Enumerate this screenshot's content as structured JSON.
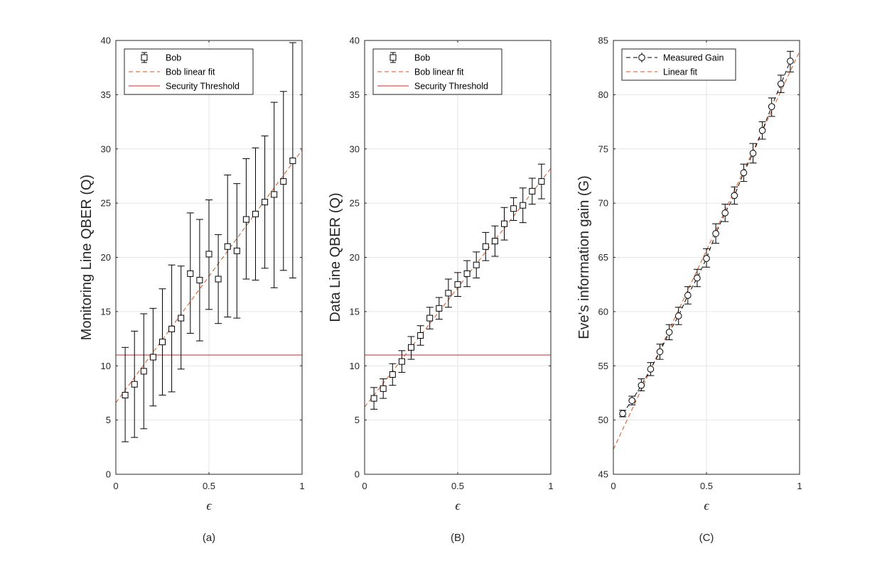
{
  "figure": {
    "colors": {
      "data": "#000000",
      "fit": "#d95319",
      "threshold": "#d62728",
      "grid": "#e6e6e6",
      "axis": "#262626"
    }
  },
  "chart_data": [
    {
      "type": "scatter",
      "caption": "(a)",
      "xlabel": "ϵ",
      "ylabel": "Monitoring Line QBER (Q)",
      "xlim": [
        0,
        1
      ],
      "ylim": [
        0,
        40
      ],
      "xticks": [
        0,
        0.5,
        1
      ],
      "xtick_labels": [
        "0",
        "0.5",
        "1"
      ],
      "yticks": [
        0,
        5,
        10,
        15,
        20,
        25,
        30,
        35,
        40
      ],
      "ytick_labels": [
        "0",
        "5",
        "10",
        "15",
        "20",
        "25",
        "30",
        "35",
        "40"
      ],
      "grid": true,
      "marker": "square",
      "legend": {
        "position": "top-left",
        "entries": [
          "Bob",
          "Bob linear fit",
          "Security Threshold"
        ]
      },
      "series": [
        {
          "name": "Bob",
          "x": [
            0.05,
            0.1,
            0.15,
            0.2,
            0.25,
            0.3,
            0.35,
            0.4,
            0.45,
            0.5,
            0.55,
            0.6,
            0.65,
            0.7,
            0.75,
            0.8,
            0.85,
            0.9,
            0.95
          ],
          "y": [
            7.3,
            8.3,
            9.5,
            10.8,
            12.2,
            13.4,
            14.4,
            18.5,
            17.9,
            20.3,
            18.0,
            21.0,
            20.6,
            23.5,
            24.0,
            25.1,
            25.8,
            27.0,
            28.9
          ],
          "lower": [
            3.0,
            3.4,
            4.2,
            6.3,
            7.3,
            7.6,
            9.7,
            13.0,
            12.3,
            15.2,
            13.9,
            14.5,
            14.4,
            18.0,
            17.9,
            19.0,
            17.2,
            18.8,
            18.1
          ],
          "upper": [
            11.7,
            13.2,
            14.8,
            15.3,
            17.1,
            19.3,
            19.2,
            24.1,
            23.5,
            25.3,
            22.1,
            27.6,
            26.8,
            29.1,
            30.1,
            31.2,
            34.3,
            35.3,
            39.8
          ]
        }
      ],
      "fit": {
        "name": "Bob linear fit",
        "x": [
          0,
          1
        ],
        "y": [
          6.6,
          29.9
        ]
      },
      "threshold": {
        "name": "Security Threshold",
        "y": 11
      }
    },
    {
      "type": "scatter",
      "caption": "(B)",
      "xlabel": "ϵ",
      "ylabel": "Data Line QBER (Q)",
      "xlim": [
        0,
        1
      ],
      "ylim": [
        0,
        40
      ],
      "xticks": [
        0,
        0.5,
        1
      ],
      "xtick_labels": [
        "0",
        "0.5",
        "1"
      ],
      "yticks": [
        0,
        5,
        10,
        15,
        20,
        25,
        30,
        35,
        40
      ],
      "ytick_labels": [
        "0",
        "5",
        "10",
        "15",
        "20",
        "25",
        "30",
        "35",
        "40"
      ],
      "grid": true,
      "marker": "square",
      "legend": {
        "position": "top-left",
        "entries": [
          "Bob",
          "Bob linear fit",
          "Security Threshold"
        ]
      },
      "series": [
        {
          "name": "Bob",
          "x": [
            0.05,
            0.1,
            0.15,
            0.2,
            0.25,
            0.3,
            0.35,
            0.4,
            0.45,
            0.5,
            0.55,
            0.6,
            0.65,
            0.7,
            0.75,
            0.8,
            0.85,
            0.9,
            0.95
          ],
          "y": [
            7.0,
            7.9,
            9.2,
            10.4,
            11.7,
            12.8,
            14.4,
            15.3,
            16.7,
            17.5,
            18.5,
            19.3,
            21.0,
            21.5,
            23.1,
            24.5,
            24.8,
            26.1,
            27.0
          ],
          "lower": [
            6.0,
            7.0,
            8.2,
            9.4,
            10.6,
            11.9,
            13.4,
            14.3,
            15.4,
            16.4,
            17.3,
            18.1,
            19.7,
            20.1,
            21.6,
            23.4,
            23.2,
            24.9,
            25.4
          ],
          "upper": [
            8.0,
            8.8,
            10.2,
            11.4,
            12.7,
            13.7,
            15.4,
            16.3,
            18.0,
            18.6,
            19.7,
            20.5,
            22.3,
            22.9,
            24.6,
            25.5,
            26.4,
            27.3,
            28.6
          ]
        }
      ],
      "fit": {
        "name": "Bob linear fit",
        "x": [
          0,
          1
        ],
        "y": [
          6.2,
          28.2
        ]
      },
      "threshold": {
        "name": "Security Threshold",
        "y": 11
      }
    },
    {
      "type": "scatter",
      "caption": "(C)",
      "xlabel": "ϵ",
      "ylabel": "Eve's information gain (G)",
      "xlim": [
        0,
        1
      ],
      "ylim": [
        45,
        85
      ],
      "xticks": [
        0,
        0.5,
        1
      ],
      "xtick_labels": [
        "0",
        "0.5",
        "1"
      ],
      "yticks": [
        45,
        50,
        55,
        60,
        65,
        70,
        75,
        80,
        85
      ],
      "ytick_labels": [
        "45",
        "50",
        "55",
        "60",
        "65",
        "70",
        "75",
        "80",
        "85"
      ],
      "grid": true,
      "marker": "circle",
      "legend": {
        "position": "top-left",
        "entries": [
          "Measured Gain",
          "Linear fit"
        ]
      },
      "series": [
        {
          "name": "Measured Gain",
          "x": [
            0.05,
            0.1,
            0.15,
            0.2,
            0.25,
            0.3,
            0.35,
            0.4,
            0.45,
            0.5,
            0.55,
            0.6,
            0.65,
            0.7,
            0.75,
            0.8,
            0.85,
            0.9,
            0.95
          ],
          "y": [
            50.6,
            51.8,
            53.2,
            54.7,
            56.3,
            58.1,
            59.6,
            61.5,
            63.1,
            64.9,
            67.2,
            69.1,
            70.7,
            72.8,
            74.6,
            76.7,
            78.9,
            81.0,
            83.1
          ],
          "lower": [
            50.3,
            51.4,
            52.7,
            54.1,
            55.6,
            57.4,
            58.8,
            60.7,
            62.3,
            64.1,
            66.3,
            68.3,
            69.9,
            72.0,
            73.7,
            75.9,
            78.0,
            80.2,
            82.1
          ],
          "upper": [
            50.9,
            52.2,
            53.8,
            55.3,
            57.0,
            58.8,
            60.4,
            62.3,
            63.9,
            65.8,
            68.1,
            69.9,
            71.5,
            73.6,
            75.5,
            77.5,
            79.7,
            81.8,
            84.0
          ]
        }
      ],
      "fit": {
        "name": "Linear fit",
        "x": [
          0,
          1
        ],
        "y": [
          47.3,
          84.0
        ]
      }
    }
  ]
}
